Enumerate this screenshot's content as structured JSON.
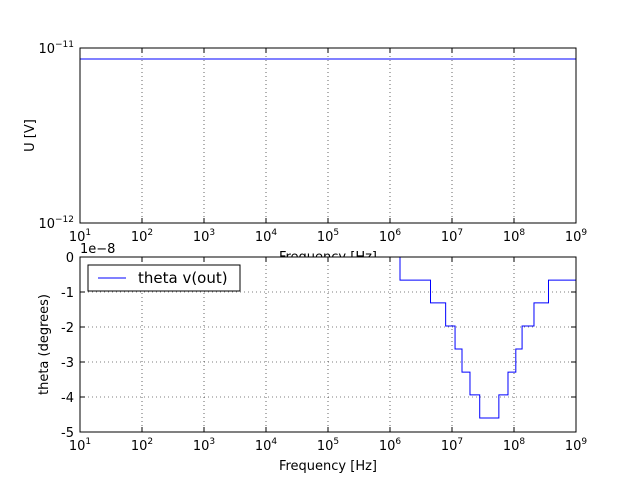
{
  "chart_data": [
    {
      "type": "line",
      "xlabel": "Frequency [Hz]",
      "ylabel": "U [V]",
      "xlog": true,
      "ylog": true,
      "grid": true,
      "xlim": [
        10,
        1000000000
      ],
      "ylim": [
        1e-12,
        1e-11
      ],
      "xticks": [
        {
          "value": 10,
          "label": "10",
          "exponent": "1"
        },
        {
          "value": 100,
          "label": "10",
          "exponent": "2"
        },
        {
          "value": 1000,
          "label": "10",
          "exponent": "3"
        },
        {
          "value": 10000,
          "label": "10",
          "exponent": "4"
        },
        {
          "value": 100000,
          "label": "10",
          "exponent": "5"
        },
        {
          "value": 1000000,
          "label": "10",
          "exponent": "6"
        },
        {
          "value": 10000000,
          "label": "10",
          "exponent": "7"
        },
        {
          "value": 100000000,
          "label": "10",
          "exponent": "8"
        },
        {
          "value": 1000000000,
          "label": "10",
          "exponent": "9"
        }
      ],
      "yticks": [
        {
          "value": 1e-12,
          "label": "10",
          "exponent": "−12"
        },
        {
          "value": 1e-11,
          "label": "10",
          "exponent": "−11"
        }
      ],
      "x": [
        10,
        1000000000
      ],
      "series": [
        {
          "color": "#0000ff",
          "values": [
            8.65e-12,
            8.65e-12
          ]
        }
      ]
    },
    {
      "type": "line",
      "xlabel": "Frequency [Hz]",
      "ylabel": "theta (degrees)",
      "xlog": true,
      "ylog": false,
      "grid": true,
      "legend": "upper left",
      "y_offset_label": "1e−8",
      "xlim": [
        10,
        1000000000
      ],
      "ylim": [
        -5,
        0
      ],
      "xticks": [
        {
          "value": 10,
          "label": "10",
          "exponent": "1"
        },
        {
          "value": 100,
          "label": "10",
          "exponent": "2"
        },
        {
          "value": 1000,
          "label": "10",
          "exponent": "3"
        },
        {
          "value": 10000,
          "label": "10",
          "exponent": "4"
        },
        {
          "value": 100000,
          "label": "10",
          "exponent": "5"
        },
        {
          "value": 1000000,
          "label": "10",
          "exponent": "6"
        },
        {
          "value": 10000000,
          "label": "10",
          "exponent": "7"
        },
        {
          "value": 100000000,
          "label": "10",
          "exponent": "8"
        },
        {
          "value": 1000000000,
          "label": "10",
          "exponent": "9"
        }
      ],
      "yticks": [
        0,
        -1,
        -2,
        -3,
        -4,
        -5
      ],
      "x": [
        10,
        1450000,
        1450000,
        4500000,
        4500000,
        7900000,
        7900000,
        11200000,
        11200000,
        14500000,
        14500000,
        19500000,
        19500000,
        28000000,
        28000000,
        57000000,
        57000000,
        80000000,
        80000000,
        107000000,
        107000000,
        135000000,
        135000000,
        210000000,
        210000000,
        360000000,
        360000000,
        1000000000
      ],
      "series": [
        {
          "name": "theta v(out)",
          "color": "#0000ff",
          "values": [
            0,
            0,
            -0.66,
            -0.66,
            -1.31,
            -1.31,
            -1.97,
            -1.97,
            -2.63,
            -2.63,
            -3.29,
            -3.29,
            -3.94,
            -3.94,
            -4.6,
            -4.6,
            -3.94,
            -3.94,
            -3.29,
            -3.29,
            -2.63,
            -2.63,
            -1.97,
            -1.97,
            -1.31,
            -1.31,
            -0.66,
            -0.66
          ]
        }
      ]
    }
  ]
}
